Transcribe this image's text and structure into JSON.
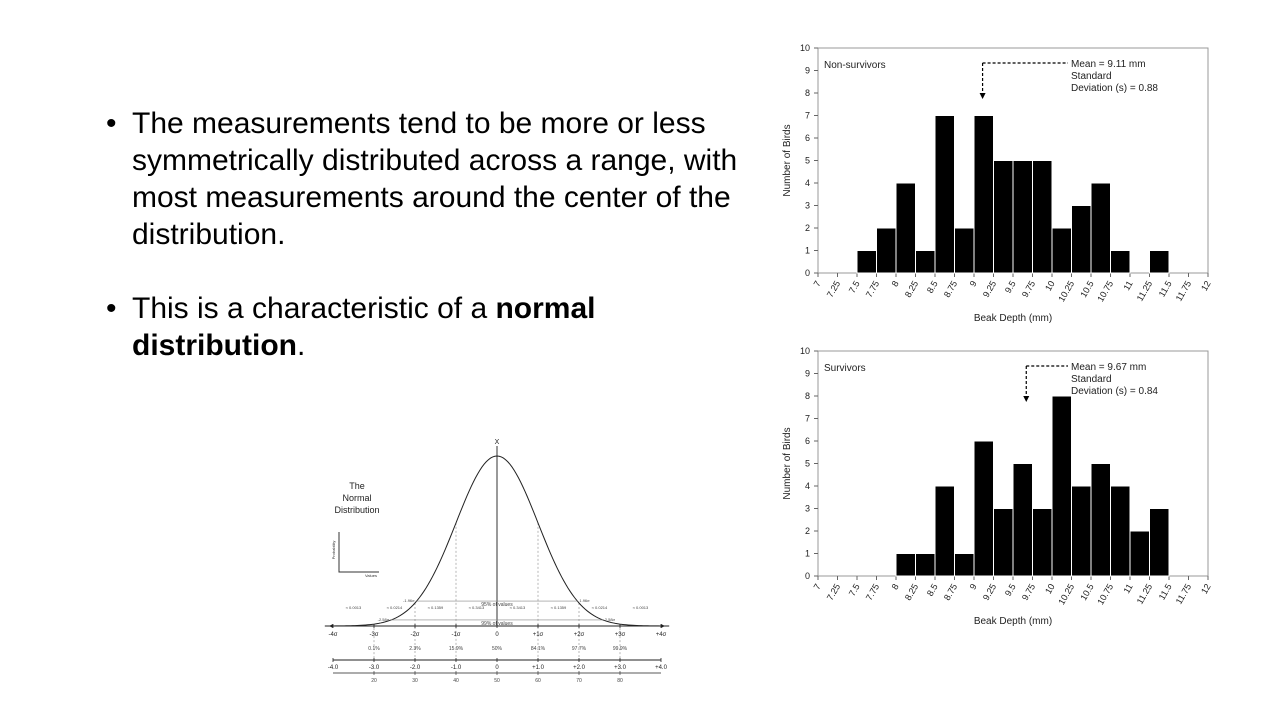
{
  "bullets": [
    {
      "text": "The measurements tend to be more or less symmetrically distributed across a range, with most measurements around the center of the distribution."
    },
    {
      "text_before": "This is a characteristic of a ",
      "text_bold": "normal distribution",
      "text_after": "."
    }
  ],
  "bullet_char": "•",
  "chart_data": [
    {
      "type": "bar",
      "label": "Non-survivors",
      "annotation": {
        "line1": "Mean = 9.11 mm",
        "line2": "Standard",
        "line3": "Deviation (s) = 0.88",
        "mean": 9.11
      },
      "ylabel": "Number of Birds",
      "xlabel": "Beak Depth (mm)",
      "ylim": [
        0,
        10
      ],
      "yticks": [
        "0",
        "1",
        "2",
        "3",
        "4",
        "5",
        "6",
        "7",
        "8",
        "9",
        "10"
      ],
      "xticks": [
        "7",
        "7.25",
        "7.5",
        "7.75",
        "8",
        "8.25",
        "8.5",
        "8.75",
        "9",
        "9.25",
        "9.5",
        "9.75",
        "10",
        "10.25",
        "10.5",
        "10.75",
        "11",
        "11.25",
        "11.5",
        "11.75",
        "12"
      ],
      "bin_start": 7.0,
      "bin_width": 0.25,
      "values": [
        0,
        0,
        1,
        2,
        4,
        1,
        7,
        2,
        7,
        5,
        5,
        5,
        2,
        3,
        4,
        1,
        0,
        1,
        0,
        0
      ]
    },
    {
      "type": "bar",
      "label": "Survivors",
      "annotation": {
        "line1": "Mean = 9.67 mm",
        "line2": "Standard",
        "line3": "Deviation (s) = 0.84",
        "mean": 9.67
      },
      "ylabel": "Number of Birds",
      "xlabel": "Beak Depth (mm)",
      "ylim": [
        0,
        10
      ],
      "yticks": [
        "0",
        "1",
        "2",
        "3",
        "4",
        "5",
        "6",
        "7",
        "8",
        "9",
        "10"
      ],
      "xticks": [
        "7",
        "7.25",
        "7.5",
        "7.75",
        "8",
        "8.25",
        "8.5",
        "8.75",
        "9",
        "9.25",
        "9.5",
        "9.75",
        "10",
        "10.25",
        "10.5",
        "10.75",
        "11",
        "11.25",
        "11.5",
        "11.75",
        "12"
      ],
      "bin_start": 7.0,
      "bin_width": 0.25,
      "values": [
        0,
        0,
        0,
        0,
        1,
        1,
        4,
        1,
        6,
        3,
        5,
        3,
        8,
        4,
        5,
        4,
        2,
        3,
        0,
        0
      ]
    },
    {
      "type": "line",
      "title_lines": [
        "The",
        "Normal",
        "Distribution"
      ],
      "inset_ylabel": "Probability",
      "inset_xlabel": "Values",
      "top_label": "X",
      "band_95": {
        "label": "95% of values",
        "left": "-1.96σ",
        "right": "1.96σ",
        "z": 1.96
      },
      "band_99": {
        "label": "99% of values",
        "left": "-2.58σ",
        "right": "2.58σ",
        "z": 2.58
      },
      "segment_probs": [
        "≈ 0.0013",
        "≈ 0.0214",
        "≈ 0.1359",
        "≈ 0.3413",
        "≈ 0.3413",
        "≈ 0.1359",
        "≈ 0.0214",
        "≈ 0.0013"
      ],
      "sigma_labels": [
        "-4σ",
        "-3σ",
        "-2σ",
        "-1σ",
        "0",
        "+1σ",
        "+2σ",
        "+3σ",
        "+4σ"
      ],
      "percentiles": [
        "0.1%",
        "2.3%",
        "15.9%",
        "50%",
        "84.1%",
        "97.7%",
        "99.9%"
      ],
      "z_labels": [
        "-4.0",
        "-3.0",
        "-2.0",
        "-1.0",
        "0",
        "+1.0",
        "+2.0",
        "+3.0",
        "+4.0"
      ],
      "t_labels": [
        "20",
        "30",
        "40",
        "50",
        "60",
        "70",
        "80"
      ]
    }
  ]
}
